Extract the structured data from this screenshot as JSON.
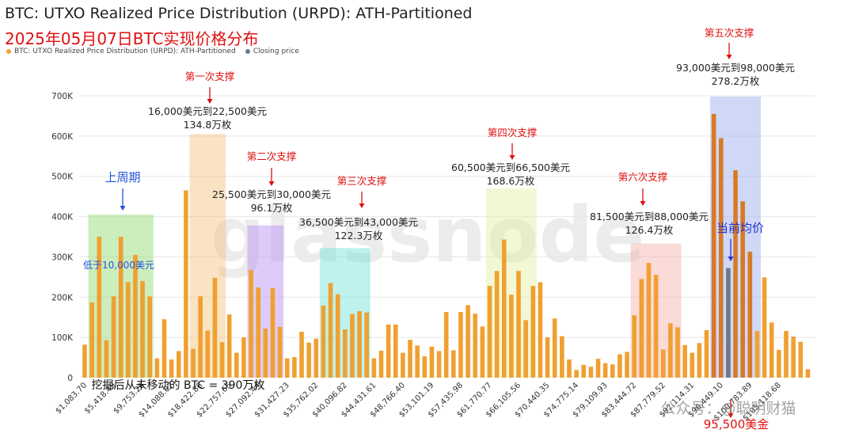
{
  "title": "BTC: UTXO Realized Price Distribution (URPD): ATH-Partitioned",
  "subtitle": "2025年05月07日BTC实现价格分布",
  "legend": [
    {
      "label": "BTC: UTXO Realized Price Distribution (URPD): ATH-Partitioned",
      "color": "#f0a030"
    },
    {
      "label": "Closing price",
      "color": "#6a7a8a"
    }
  ],
  "watermark": "glassnode",
  "footer_watermark": "公众号：@聪明财猫",
  "chart_data": {
    "type": "bar",
    "ylim": [
      0,
      700000
    ],
    "y_ticks": [
      {
        "v": 0,
        "label": "0"
      },
      {
        "v": 100000,
        "label": "100K"
      },
      {
        "v": 200000,
        "label": "200K"
      },
      {
        "v": 300000,
        "label": "300K"
      },
      {
        "v": 400000,
        "label": "400K"
      },
      {
        "v": 500000,
        "label": "500K"
      },
      {
        "v": 600000,
        "label": "600K"
      },
      {
        "v": 700000,
        "label": "700K"
      }
    ],
    "x_tick_labels": [
      {
        "i": 0,
        "label": "$1,083.70"
      },
      {
        "i": 4,
        "label": "$5,418.49"
      },
      {
        "i": 8,
        "label": "$9,753.28"
      },
      {
        "i": 12,
        "label": "$14,088.07"
      },
      {
        "i": 16,
        "label": "$18,422.86"
      },
      {
        "i": 20,
        "label": "$22,757.65"
      },
      {
        "i": 24,
        "label": "$27,092.44"
      },
      {
        "i": 28,
        "label": "$31,427.23"
      },
      {
        "i": 32,
        "label": "$35,762.02"
      },
      {
        "i": 36,
        "label": "$40,096.82"
      },
      {
        "i": 40,
        "label": "$44,431.61"
      },
      {
        "i": 44,
        "label": "$48,766.40"
      },
      {
        "i": 48,
        "label": "$53,101.19"
      },
      {
        "i": 52,
        "label": "$57,435.98"
      },
      {
        "i": 56,
        "label": "$61,770.77"
      },
      {
        "i": 60,
        "label": "$66,105.56"
      },
      {
        "i": 64,
        "label": "$70,440.35"
      },
      {
        "i": 68,
        "label": "$74,775.14"
      },
      {
        "i": 72,
        "label": "$79,109.93"
      },
      {
        "i": 76,
        "label": "$83,444.72"
      },
      {
        "i": 80,
        "label": "$87,779.52"
      },
      {
        "i": 84,
        "label": "$92,114.31"
      },
      {
        "i": 88,
        "label": "$96,449.10"
      },
      {
        "i": 92,
        "label": "$100,783.89"
      },
      {
        "i": 96,
        "label": "$105,118.68"
      }
    ],
    "values": [
      82000,
      187000,
      350000,
      93000,
      202000,
      350000,
      237000,
      305000,
      240000,
      202000,
      48000,
      145000,
      45000,
      66000,
      465000,
      72000,
      202000,
      117000,
      248000,
      88000,
      157000,
      62000,
      100000,
      267000,
      224000,
      122000,
      222000,
      126000,
      48000,
      51000,
      114000,
      87000,
      97000,
      179000,
      235000,
      207000,
      120000,
      158000,
      165000,
      162000,
      48000,
      67000,
      132000,
      132000,
      62000,
      94000,
      80000,
      53000,
      77000,
      66000,
      163000,
      68000,
      163000,
      180000,
      159000,
      127000,
      228000,
      265000,
      343000,
      206000,
      265000,
      143000,
      228000,
      237000,
      100000,
      147000,
      103000,
      45000,
      19000,
      32000,
      27000,
      47000,
      36000,
      33000,
      58000,
      64000,
      155000,
      245000,
      285000,
      255000,
      70000,
      135000,
      125000,
      81000,
      62000,
      86000,
      118000,
      655000,
      595000,
      90000,
      515000,
      438000,
      313000,
      116000,
      249000,
      137000,
      69000,
      116000,
      102000,
      89000,
      21000
    ],
    "bar_colors": {
      "default": "#f0a030",
      "dark": "#d87a25"
    },
    "dark_bar_indices": [
      87,
      88,
      90,
      91,
      92
    ],
    "closing_price": {
      "index": 89,
      "value": 272000,
      "color": "#6a7a8a"
    },
    "regions": [
      {
        "name": "prev-cycle",
        "start": 1,
        "end": 9,
        "top": 405000,
        "color": "#8ed66a"
      },
      {
        "name": "support-1",
        "start": 15,
        "end": 19,
        "top": 605000,
        "color": "#f5c27a"
      },
      {
        "name": "support-2",
        "start": 23,
        "end": 27,
        "top": 378000,
        "color": "#b98cf5"
      },
      {
        "name": "support-3",
        "start": 33,
        "end": 39,
        "top": 322000,
        "color": "#6fe3d6"
      },
      {
        "name": "support-4",
        "start": 56,
        "end": 62,
        "top": 470000,
        "color": "#e2f0a0"
      },
      {
        "name": "support-6",
        "start": 76,
        "end": 82,
        "top": 333000,
        "color": "#f7b0a8"
      },
      {
        "name": "support-5",
        "start": 87,
        "end": 93,
        "top": 698000,
        "color": "#97a8f0"
      }
    ],
    "annotations": {
      "prev_cycle_label": "上周期",
      "below_10k": "低于10,000美元",
      "dormant_note": "挖掘后从未移动的 BTC = 390万枚",
      "current_avg_label": "当前均价",
      "current_price": "95,500美金",
      "supports": [
        {
          "heading": "第一次支撑",
          "range": "16,000美元到22,500美元",
          "amount": "134.8万枚"
        },
        {
          "heading": "第二次支撑",
          "range": "25,500美元到30,000美元",
          "amount": "96.1万枚"
        },
        {
          "heading": "第三次支撑",
          "range": "36,500美元到43,000美元",
          "amount": "122.3万枚"
        },
        {
          "heading": "第四次支撑",
          "range": "60,500美元到66,500美元",
          "amount": "168.6万枚"
        },
        {
          "heading": "第五次支撑",
          "range": "93,000美元到98,000美元",
          "amount": "278.2万枚"
        },
        {
          "heading": "第六次支撑",
          "range": "81,500美元到88,000美元",
          "amount": "126.4万枚"
        }
      ]
    }
  }
}
